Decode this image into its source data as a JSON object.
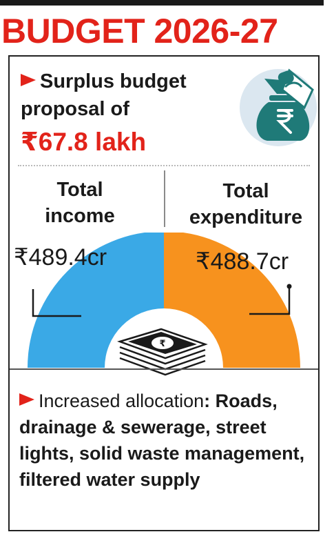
{
  "headline": "BUDGET 2026-27",
  "surplus": {
    "text": "Surplus budget proposal of",
    "amount": "₹67.8 lakh"
  },
  "income": {
    "label": "Total income",
    "value": "₹489.4cr",
    "color": "#3aa9e6"
  },
  "expenditure": {
    "label": "Total expenditure",
    "value": "₹488.7cr",
    "color": "#f7921e"
  },
  "allocation": {
    "label": "Increased allocation",
    "items": "Roads, drainage & sewerage, street lights, solid waste management, filtered water supply"
  },
  "icons": {
    "money_bag": "money-bag-icon",
    "banknotes": "banknote-stack-icon"
  },
  "colors": {
    "accent": "#e2231a",
    "bag_circle": "#dbe7f0",
    "bag": "#1f7a78"
  }
}
